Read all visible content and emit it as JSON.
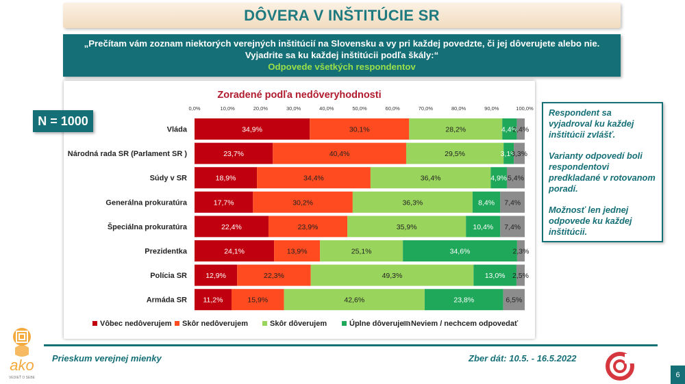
{
  "header": {
    "title": "DÔVERA V INŠTITÚCIE SR"
  },
  "question": {
    "text": "„Prečítam vám zoznam niektorých verejných inštitúcií na Slovensku a vy pri každej povedzte, či jej dôverujete alebo nie. Vyjadrite sa ku každej inštitúcii podľa škály:“",
    "subtitle": "Odpovede všetkých respondentov"
  },
  "sample": {
    "label": "N = 1000"
  },
  "notes": [
    "Respondent sa vyjadroval ku každej inštitúcii zvlášť.",
    "Varianty odpovedí boli respondentovi predkladané v rotovanom poradí.",
    "Možnosť len jednej odpovede ku každej inštitúcii."
  ],
  "footer": {
    "survey": "Prieskum verejnej mienky",
    "dates": "Zber dát: 10.5. - 16.5.2022",
    "page": "6",
    "logo_text": "ako",
    "logo_tagline": "VEDIEŤ O SEBE"
  },
  "chart_data": {
    "type": "bar",
    "orientation": "horizontal",
    "stacked": true,
    "title": "Zoradené podľa nedôveryhodnosti",
    "categories": [
      "Vláda",
      "Národná rada SR (Parlament SR )",
      "Súdy v SR",
      "Generálna prokuratúra",
      "Špeciálna prokuratúra",
      "Prezidentka",
      "Polícia SR",
      "Armáda SR"
    ],
    "xlim": [
      0,
      100
    ],
    "x_ticks": [
      "0,0%",
      "10,0%",
      "20,0%",
      "30,0%",
      "40,0%",
      "50,0%",
      "60,0%",
      "70,0%",
      "80,0%",
      "90,0%",
      "100,0%"
    ],
    "legend_position": "bottom",
    "series": [
      {
        "name": "Vôbec nedôverujem",
        "color": "#c0000e",
        "values": [
          34.9,
          23.7,
          18.9,
          17.7,
          22.4,
          24.1,
          12.9,
          11.2
        ]
      },
      {
        "name": "Skôr nedôverujem",
        "color": "#ff4b1f",
        "values": [
          30.1,
          40.4,
          34.4,
          30.2,
          23.9,
          13.9,
          22.3,
          15.9
        ]
      },
      {
        "name": "Skôr dôverujem",
        "color": "#99d45c",
        "values": [
          28.2,
          29.5,
          36.4,
          36.3,
          35.9,
          25.1,
          49.3,
          42.6
        ]
      },
      {
        "name": "Úplne dôverujem",
        "color": "#1fa85a",
        "values": [
          4.4,
          3.1,
          4.9,
          8.4,
          10.4,
          34.6,
          13.0,
          23.8
        ]
      },
      {
        "name": "Neviem / nechcem odpovedať",
        "color": "#8c8c8c",
        "values": [
          2.4,
          3.3,
          5.4,
          7.4,
          7.4,
          2.3,
          2.5,
          6.5
        ]
      }
    ]
  }
}
